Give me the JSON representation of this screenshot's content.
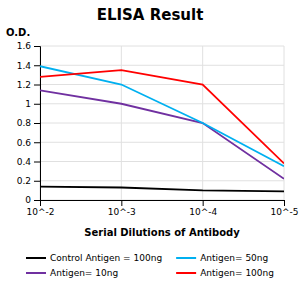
{
  "chart_data": {
    "type": "line",
    "title": "ELISA Result",
    "xlabel": "Serial Dilutions of Antibody",
    "ylabel": "O.D.",
    "x": [
      0.01,
      0.001,
      0.0001,
      1e-05
    ],
    "series": [
      {
        "name": "Control Antigen = 100ng",
        "color": "#000000",
        "values": [
          0.14,
          0.13,
          0.1,
          0.09
        ]
      },
      {
        "name": "Antigen= 10ng",
        "color": "#7030A0",
        "values": [
          1.14,
          1.0,
          0.8,
          0.22
        ]
      },
      {
        "name": "Antigen= 50ng",
        "color": "#00B0F0",
        "values": [
          1.39,
          1.2,
          0.8,
          0.35
        ]
      },
      {
        "name": "Antigen= 100ng",
        "color": "#FF0000",
        "values": [
          1.28,
          1.35,
          1.2,
          0.38
        ]
      }
    ],
    "log": "x",
    "xlim": [
      0.01,
      1e-05
    ],
    "xticks": [
      {
        "value": 0.01,
        "label": "10^-2"
      },
      {
        "value": 0.001,
        "label": "10^-3"
      },
      {
        "value": 0.0001,
        "label": "10^-4"
      },
      {
        "value": 1e-05,
        "label": "10^-5"
      }
    ],
    "ylim": [
      0,
      1.6
    ],
    "yticks": [
      0,
      0.2,
      0.4,
      0.6,
      0.8,
      1,
      1.2,
      1.4,
      1.6
    ],
    "grid": true,
    "legend": "bottom"
  }
}
